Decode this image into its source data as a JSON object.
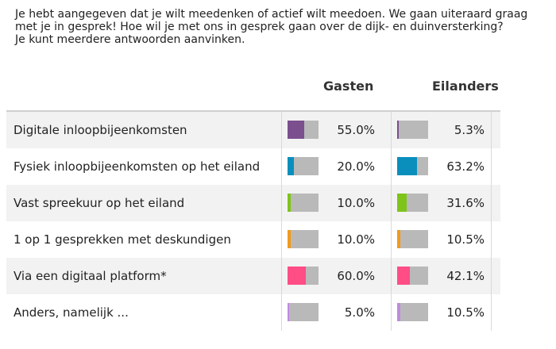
{
  "intro": {
    "lines": [
      "Je hebt aangegeven dat je wilt meedenken of actief wilt meedoen. We gaan uiteraard graag",
      "met je in gesprek! Hoe wil je met ons in gesprek gaan over de dijk- en duinversterking?",
      "Je kunt meerdere antwoorden aanvinken."
    ]
  },
  "chart_data": {
    "type": "table",
    "columns": [
      "Gasten",
      "Eilanders"
    ],
    "rows": [
      {
        "label": "Digitale inloopbijeenkomsten",
        "gasten": 55.0,
        "gasten_text": "55.0%",
        "eilanders": 5.3,
        "eilanders_text": "5.3%",
        "color": "#7b4f8e"
      },
      {
        "label": "Fysiek inloopbijeenkomsten op het eiland",
        "gasten": 20.0,
        "gasten_text": "20.0%",
        "eilanders": 63.2,
        "eilanders_text": "63.2%",
        "color": "#0a8fbd"
      },
      {
        "label": "Vast spreekuur op het eiland",
        "gasten": 10.0,
        "gasten_text": "10.0%",
        "eilanders": 31.6,
        "eilanders_text": "31.6%",
        "color": "#7ec41a"
      },
      {
        "label": "1 op 1 gesprekken met deskundigen",
        "gasten": 10.0,
        "gasten_text": "10.0%",
        "eilanders": 10.5,
        "eilanders_text": "10.5%",
        "color": "#f29a1a"
      },
      {
        "label": "Via een digitaal platform*",
        "gasten": 60.0,
        "gasten_text": "60.0%",
        "eilanders": 42.1,
        "eilanders_text": "42.1%",
        "color": "#ff4d86"
      },
      {
        "label": "Anders, namelijk ...",
        "gasten": 5.0,
        "gasten_text": "5.0%",
        "eilanders": 10.5,
        "eilanders_text": "10.5%",
        "color": "#c08ae0"
      }
    ],
    "bar_track_color": "#b9b9b9"
  }
}
